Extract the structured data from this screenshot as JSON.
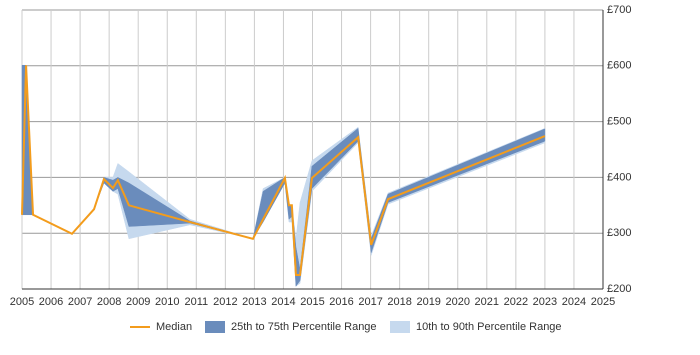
{
  "chart_data": {
    "type": "band-line",
    "x": [
      2005.0,
      2005.14,
      2005.38,
      2006.72,
      2007.48,
      2007.82,
      2008.13,
      2008.3,
      2008.68,
      2010.78,
      2012.95,
      2013.3,
      2014.05,
      2014.19,
      2014.29,
      2014.43,
      2014.57,
      2014.98,
      2016.57,
      2017.02,
      2017.6,
      2023.0
    ],
    "series": [
      {
        "name": "10th to 90th Percentile Range",
        "color": "#c6d9ee",
        "lower": [
          333,
          333,
          333,
          299,
          343,
          390,
          375,
          370,
          290,
          315,
          290,
          320,
          390,
          320,
          320,
          205,
          210,
          375,
          462,
          260,
          352,
          462
        ],
        "upper": [
          601,
          601,
          333,
          299,
          343,
          400,
          400,
          425,
          410,
          325,
          290,
          380,
          400,
          350,
          350,
          290,
          355,
          430,
          490,
          295,
          372,
          488
        ]
      },
      {
        "name": "25th to 75th Percentile Range",
        "color": "#6a8cbc",
        "lower": [
          333,
          333,
          333,
          299,
          343,
          390,
          375,
          380,
          312,
          318,
          290,
          320,
          390,
          325,
          330,
          205,
          215,
          380,
          465,
          265,
          355,
          465
        ],
        "upper": [
          601,
          601,
          333,
          299,
          343,
          400,
          395,
          400,
          390,
          322,
          290,
          375,
          400,
          350,
          350,
          275,
          235,
          420,
          488,
          290,
          370,
          487
        ]
      },
      {
        "name": "Median",
        "color": "#f39c1c",
        "values": [
          333,
          601,
          333,
          299,
          343,
          397,
          381,
          395,
          350,
          320,
          290,
          325,
          399,
          350,
          350,
          225,
          225,
          399,
          472,
          279,
          361,
          474
        ]
      }
    ],
    "xlim": [
      2005,
      2025
    ],
    "xticks": [
      2005,
      2006,
      2007,
      2008,
      2009,
      2010,
      2011,
      2012,
      2013,
      2014,
      2015,
      2016,
      2017,
      2018,
      2019,
      2020,
      2021,
      2022,
      2023,
      2024,
      2025
    ],
    "ylim": [
      200,
      700
    ],
    "yticks": [
      {
        "value": 200,
        "label": "£200"
      },
      {
        "value": 300,
        "label": "£300"
      },
      {
        "value": 400,
        "label": "£400"
      },
      {
        "value": 500,
        "label": "£500"
      },
      {
        "value": 600,
        "label": "£600"
      },
      {
        "value": 700,
        "label": "£700"
      }
    ],
    "grid": true
  }
}
